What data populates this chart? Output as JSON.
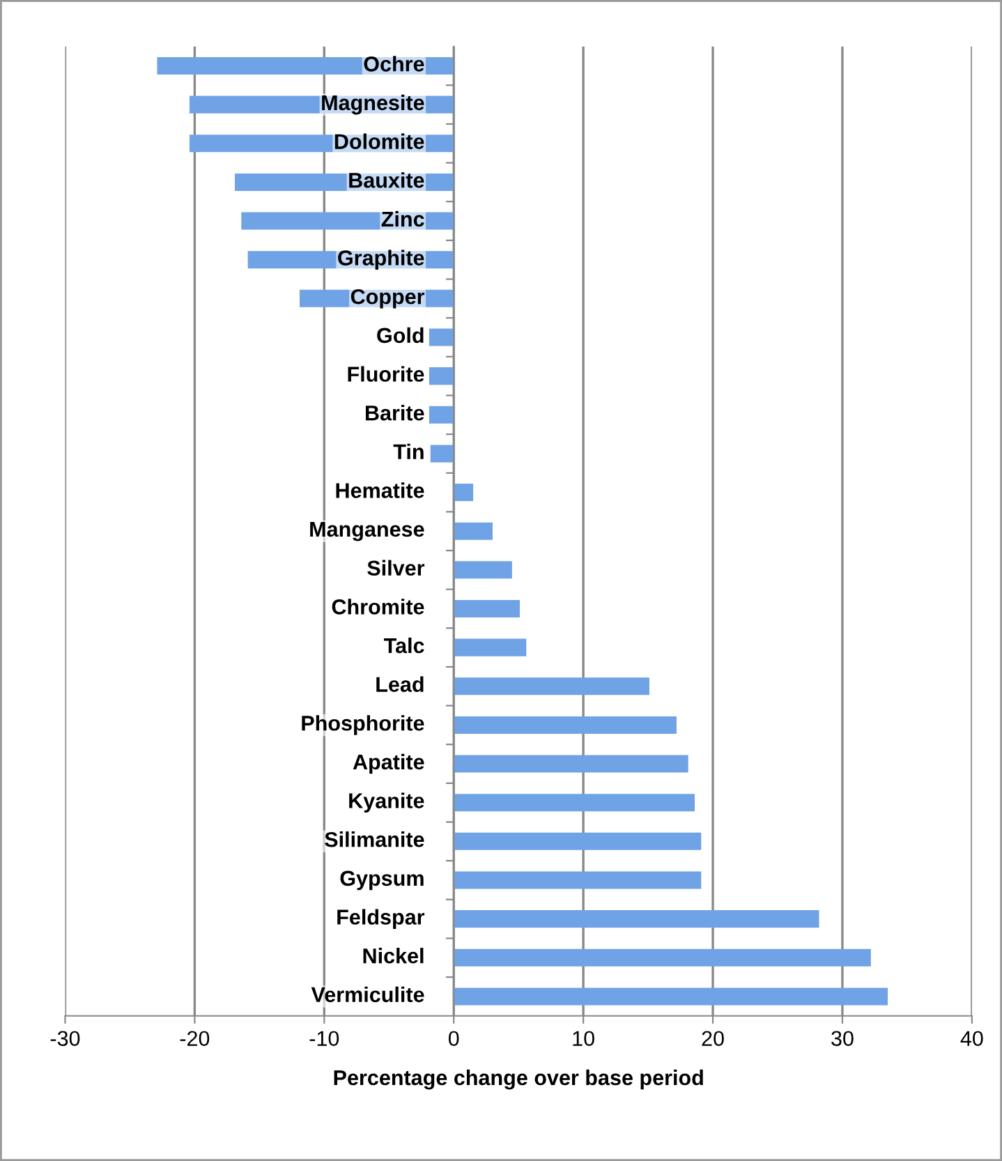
{
  "chart_data": {
    "type": "bar",
    "orientation": "horizontal",
    "xlabel": "Percentage change over base period",
    "categories": [
      "Ochre",
      "Magnesite",
      "Dolomite",
      "Bauxite",
      "Zinc",
      "Graphite",
      "Copper",
      "Gold",
      "Fluorite",
      "Barite",
      "Tin",
      "Hematite",
      "Manganese",
      "Silver",
      "Chromite",
      "Talc",
      "Lead",
      "Phosphorite",
      "Apatite",
      "Kyanite",
      "Silimanite",
      "Gypsum",
      "Feldspar",
      "Nickel",
      "Vermiculite"
    ],
    "values": [
      -22.9,
      -20.4,
      -20.4,
      -16.9,
      -16.4,
      -15.9,
      -11.9,
      -1.9,
      -1.9,
      -1.9,
      -1.8,
      1.5,
      3,
      4.5,
      5.1,
      5.6,
      15.1,
      17.2,
      18.1,
      18.6,
      19.1,
      19.1,
      28.2,
      32.2,
      33.5
    ],
    "color": "#6fa3e6",
    "xlim": [
      -30,
      40
    ],
    "xticks": [
      -30,
      -20,
      -10,
      0,
      10,
      20,
      30,
      40
    ],
    "grid": "x"
  }
}
